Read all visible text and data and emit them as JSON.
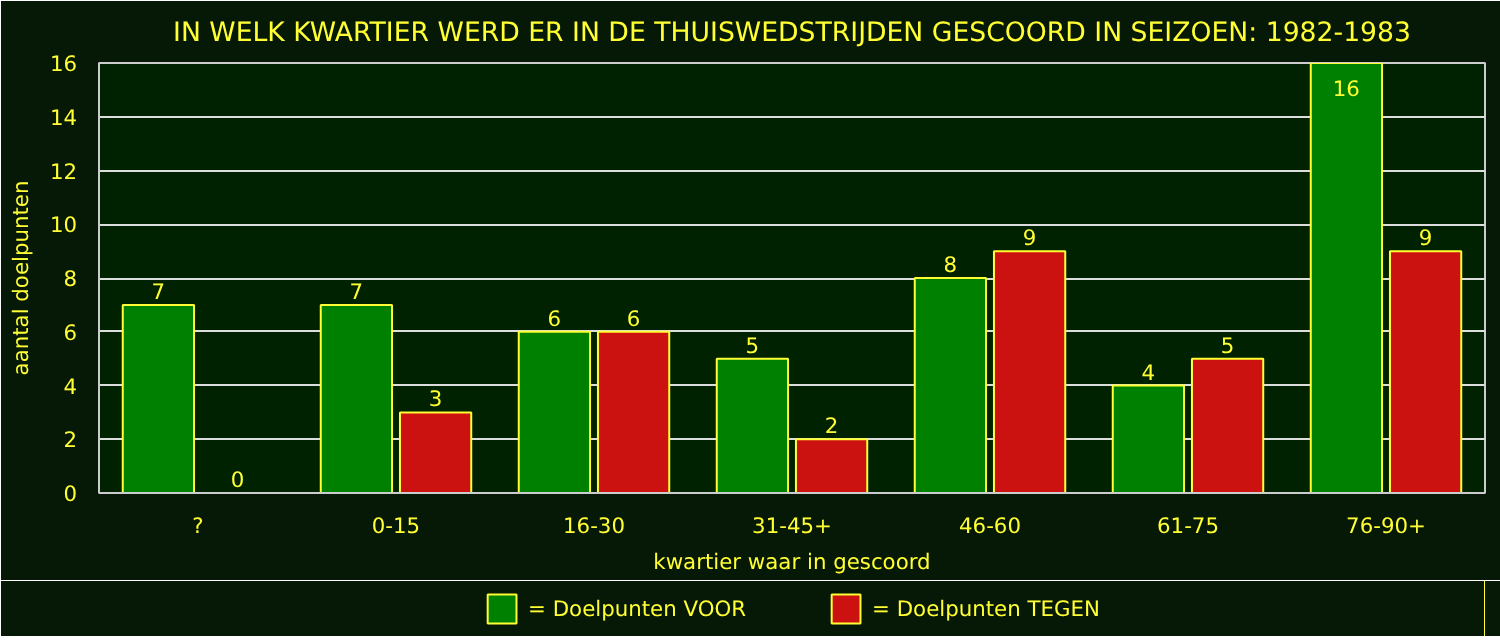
{
  "chart_data": {
    "type": "bar",
    "title": "IN WELK KWARTIER WERD ER IN DE THUISWEDSTRIJDEN GESCOORD IN SEIZOEN: 1982-1983",
    "xlabel": "kwartier waar in gescoord",
    "ylabel": "aantal doelpunten",
    "categories": [
      "?",
      "0-15",
      "16-30",
      "31-45+",
      "46-60",
      "61-75",
      "76-90+"
    ],
    "series": [
      {
        "name": "= Doelpunten VOOR",
        "color": "#008000",
        "values": [
          7,
          7,
          6,
          5,
          8,
          4,
          16
        ]
      },
      {
        "name": "= Doelpunten TEGEN",
        "color": "#cc1111",
        "values": [
          0,
          3,
          6,
          2,
          9,
          5,
          9
        ]
      }
    ],
    "ylim": [
      0,
      16
    ],
    "yticks": [
      0,
      2,
      4,
      6,
      8,
      10,
      12,
      14,
      16
    ],
    "grid": "y",
    "legend": "bottom",
    "data_labels": true
  }
}
